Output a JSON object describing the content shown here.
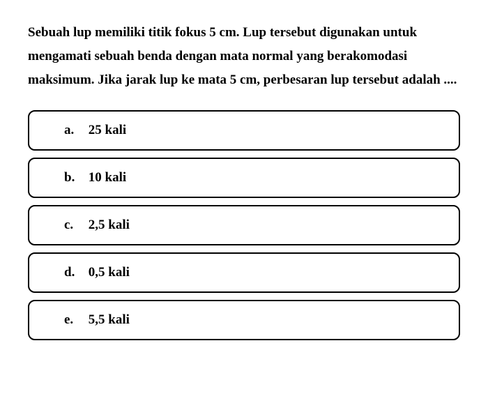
{
  "question": {
    "text": "Sebuah lup memiliki titik fokus 5 cm. Lup tersebut digunakan untuk mengamati sebuah benda dengan mata normal yang berakomodasi maksimum. Jika jarak lup ke mata 5 cm, perbesaran lup tersebut adalah ...."
  },
  "options": [
    {
      "letter": "a.",
      "text": "25 kali"
    },
    {
      "letter": "b.",
      "text": "10 kali"
    },
    {
      "letter": "c.",
      "text": "2,5 kali"
    },
    {
      "letter": "d.",
      "text": "0,5 kali"
    },
    {
      "letter": "e.",
      "text": "5,5 kali"
    }
  ],
  "styling": {
    "background_color": "#ffffff",
    "text_color": "#000000",
    "border_color": "#000000",
    "font_family": "Georgia, serif",
    "question_fontsize": 19,
    "option_fontsize": 19,
    "font_weight": "bold",
    "border_radius": 10,
    "border_width": 2,
    "line_height": 1.8
  }
}
